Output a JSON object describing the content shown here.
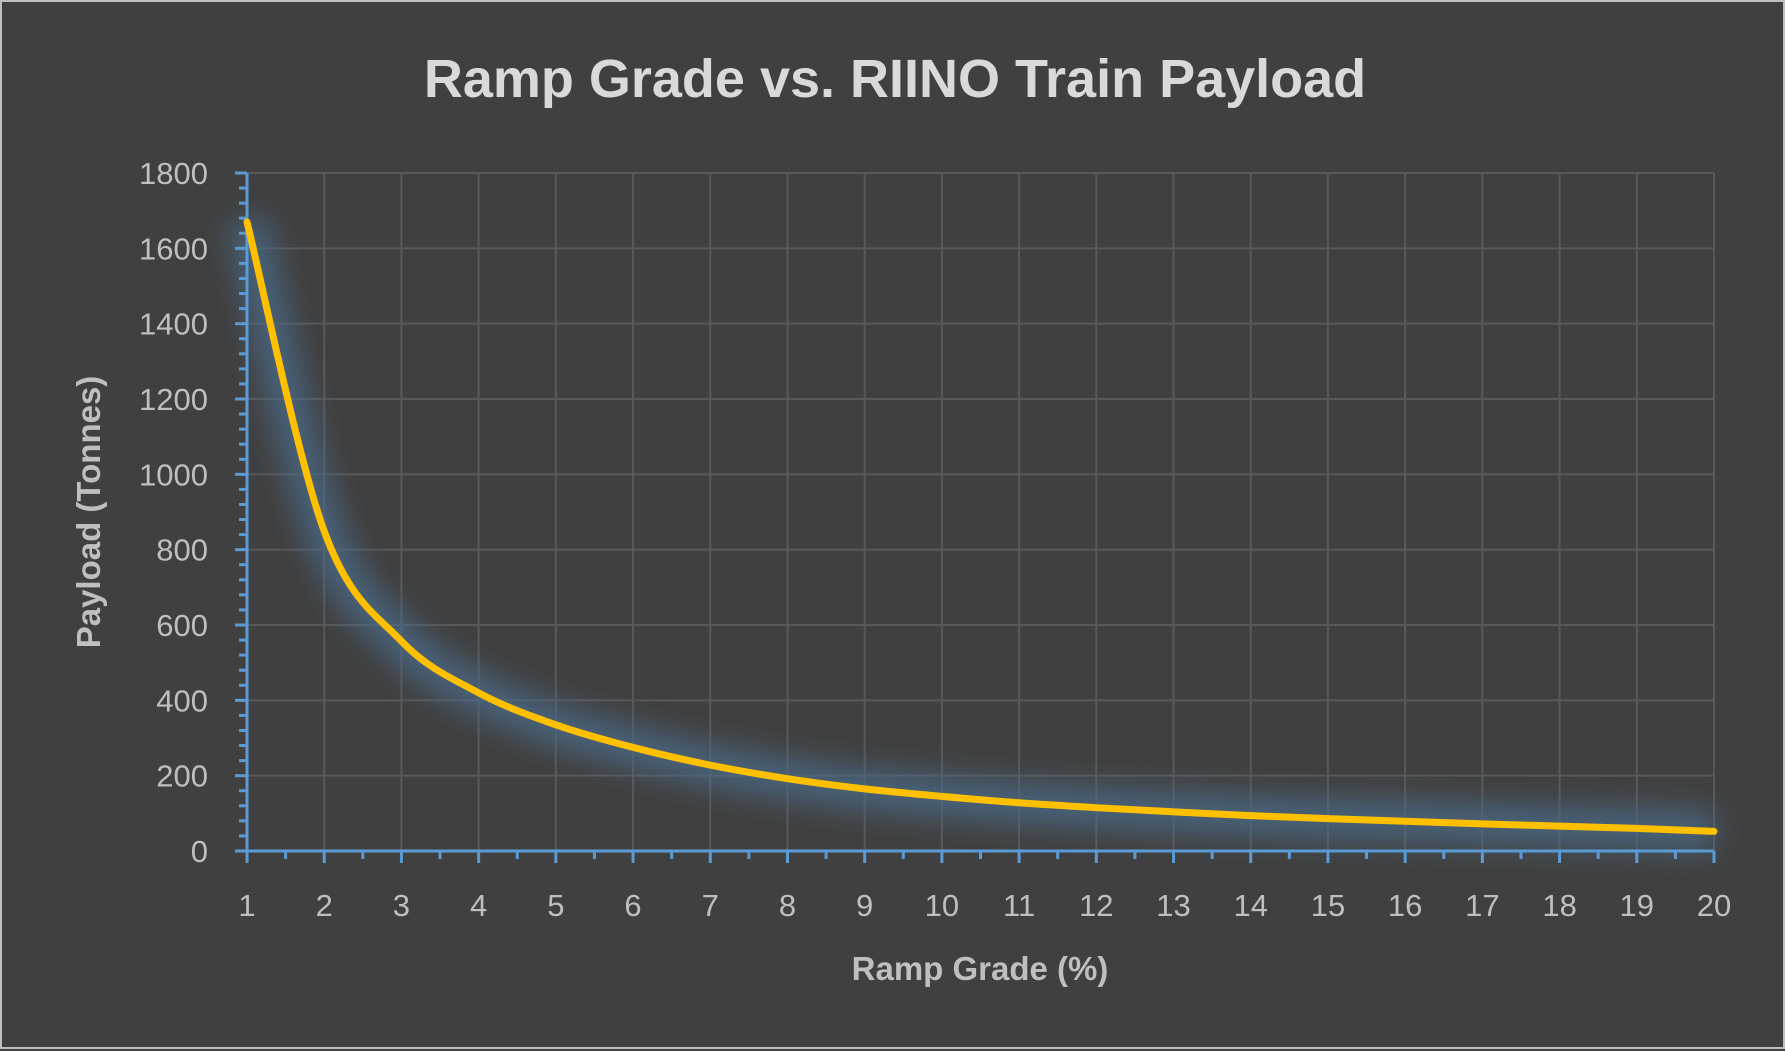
{
  "chart_data": {
    "type": "line",
    "title": "Ramp Grade vs. RIINO Train Payload",
    "xlabel": "Ramp Grade (%)",
    "ylabel": "Payload (Tonnes)",
    "xlim": [
      1,
      20
    ],
    "ylim": [
      0,
      1800
    ],
    "grid": true,
    "x_ticks": [
      "1",
      "2",
      "3",
      "4",
      "5",
      "6",
      "7",
      "8",
      "9",
      "10",
      "11",
      "12",
      "13",
      "14",
      "15",
      "16",
      "17",
      "18",
      "19",
      "20"
    ],
    "y_ticks": [
      "0",
      "200",
      "400",
      "600",
      "800",
      "1000",
      "1200",
      "1400",
      "1600",
      "1800"
    ],
    "series": [
      {
        "name": "Payload",
        "color": "#ffc000",
        "x": [
          1,
          2,
          3,
          4,
          5,
          6,
          7,
          8,
          9,
          10,
          11,
          12,
          13,
          14,
          15,
          16,
          17,
          18,
          19,
          20
        ],
        "y": [
          1670,
          849,
          557,
          420,
          335,
          275,
          228,
          192,
          165,
          145,
          128,
          115,
          104,
          94,
          86,
          79,
          72,
          66,
          60,
          52
        ]
      }
    ],
    "colors": {
      "background": "#404040",
      "axis": "#5b9bd5",
      "grid": "#595959",
      "glow": "#4a6a8a"
    }
  }
}
